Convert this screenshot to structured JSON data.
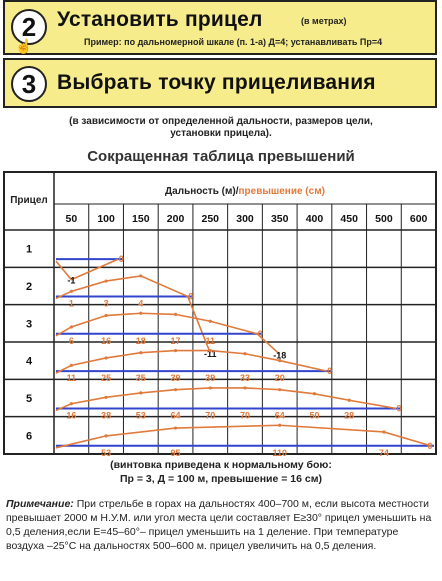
{
  "step2": {
    "number": "2",
    "title": "Установить прицел",
    "title_note": "(в метрах)",
    "example": "Пример: по дальномерной шкале (п. 1-а) Д=4; устанавливать Пр=4"
  },
  "step3": {
    "number": "3",
    "title": "Выбрать точку прицеливания"
  },
  "dependency_note": [
    "(в зависимости от определенной дальности, размеров цели,",
    "установки прицела)."
  ],
  "table_title": "Сокращенная таблица превышений",
  "chart_data": {
    "type": "line",
    "title": "Сокращенная таблица превышений",
    "row_header": "Прицел",
    "col_header": "Дальность (м)/",
    "col_header_accent": "превышение (см)",
    "x": [
      50,
      100,
      150,
      200,
      250,
      300,
      350,
      400,
      450,
      500,
      600
    ],
    "x_labels": [
      "50",
      "100",
      "150",
      "200",
      "250",
      "300",
      "350",
      "400",
      "450",
      "500",
      "600"
    ],
    "series": [
      {
        "name": "1",
        "label": "1",
        "values": [
          {
            "x": 50,
            "y": "-1"
          },
          {
            "x": 100,
            "y": "0"
          }
        ]
      },
      {
        "name": "2",
        "label": "2",
        "values": [
          {
            "x": 50,
            "y": "1"
          },
          {
            "x": 100,
            "y": "3"
          },
          {
            "x": 150,
            "y": "4"
          },
          {
            "x": 200,
            "y": "0"
          },
          {
            "x": 250,
            "y": "-11"
          }
        ]
      },
      {
        "name": "3",
        "label": "3",
        "values": [
          {
            "x": 50,
            "y": "6"
          },
          {
            "x": 100,
            "y": "16"
          },
          {
            "x": 150,
            "y": "18"
          },
          {
            "x": 200,
            "y": "17"
          },
          {
            "x": 250,
            "y": "11"
          },
          {
            "x": 300,
            "y": "0"
          },
          {
            "x": 350,
            "y": "-18"
          }
        ]
      },
      {
        "name": "4",
        "label": "4",
        "values": [
          {
            "x": 50,
            "y": "11"
          },
          {
            "x": 100,
            "y": "25"
          },
          {
            "x": 150,
            "y": "35"
          },
          {
            "x": 200,
            "y": "39"
          },
          {
            "x": 250,
            "y": "39"
          },
          {
            "x": 300,
            "y": "33"
          },
          {
            "x": 350,
            "y": "20"
          },
          {
            "x": 400,
            "y": "0"
          }
        ]
      },
      {
        "name": "5",
        "label": "5",
        "values": [
          {
            "x": 50,
            "y": "16"
          },
          {
            "x": 100,
            "y": "38"
          },
          {
            "x": 150,
            "y": "53"
          },
          {
            "x": 200,
            "y": "64"
          },
          {
            "x": 250,
            "y": "70"
          },
          {
            "x": 300,
            "y": "70"
          },
          {
            "x": 350,
            "y": "64"
          },
          {
            "x": 400,
            "y": "50"
          },
          {
            "x": 450,
            "y": "28"
          },
          {
            "x": 500,
            "y": "0"
          }
        ]
      },
      {
        "name": "6",
        "label": "6",
        "values": [
          {
            "x": 100,
            "y": "53"
          },
          {
            "x": 200,
            "y": "95"
          },
          {
            "x": 350,
            "y": "110"
          },
          {
            "x": 500,
            "y": "74"
          },
          {
            "x": 600,
            "y": "0"
          }
        ]
      }
    ],
    "line_color": "#e07a3c",
    "sight_line_color": "#3344cc"
  },
  "caption": [
    "(винтовка приведена к нормальному бою:",
    "Пр = 3, Д = 100 м, превышение = 16 см)"
  ],
  "note": {
    "label": "Примечание:",
    "text": " При стрельбе в горах на дальностях   400–700 м,  если высота местности превышает 2000 м Н.У.М. или угол места цели составляет Е≥30° прицел уменьшить на 0,5 деления,если Е=45–60°– прицел уменьшить на 1 деление. При температуре воздуха –25°С  на дальностях 500–600 м. прицел увеличить на 0,5 деления."
  }
}
